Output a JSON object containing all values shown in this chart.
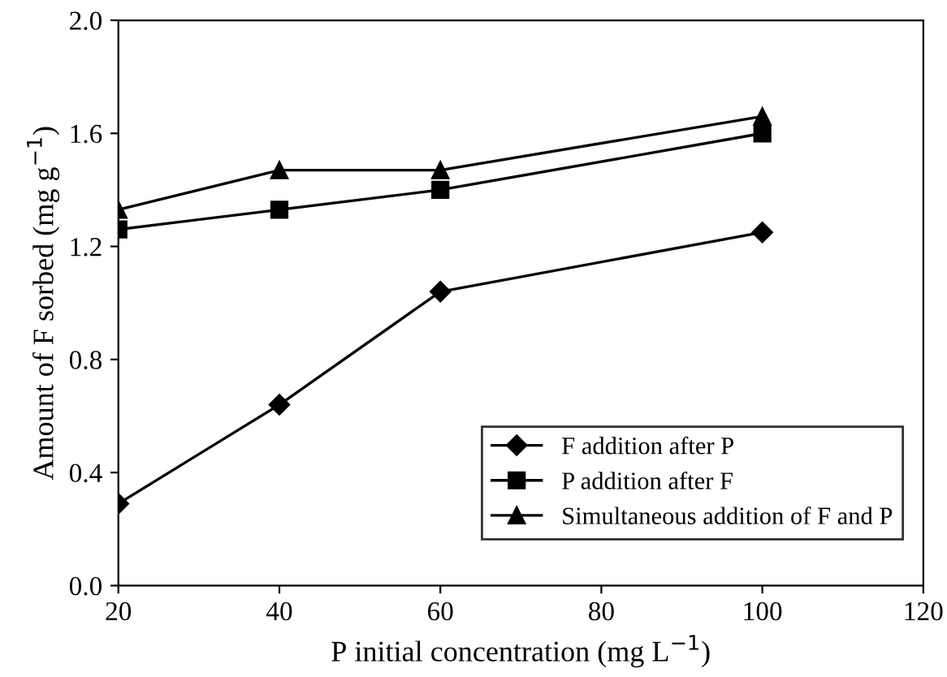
{
  "chart_data": {
    "type": "line",
    "xlabel": "P initial concentration (mg L$^{−1}$)",
    "ylabel": "Amount of F sorbed (mg g$^{−1}$)",
    "x": [
      20,
      40,
      60,
      100
    ],
    "series": [
      {
        "name": "F addition after P",
        "color": "#000000",
        "marker": "diamond",
        "values": [
          0.29,
          0.64,
          1.04,
          1.25
        ]
      },
      {
        "name": "P addition after F",
        "color": "#000000",
        "marker": "square",
        "values": [
          1.26,
          1.33,
          1.4,
          1.6
        ]
      },
      {
        "name": "Simultaneous addition of F and P",
        "color": "#000000",
        "marker": "triangle",
        "values": [
          1.33,
          1.47,
          1.47,
          1.66
        ]
      }
    ],
    "xlim": [
      20,
      120
    ],
    "xticks": [
      20,
      40,
      60,
      80,
      100,
      120
    ],
    "ylim": [
      0,
      2
    ],
    "yticks": [
      {
        "value": 0,
        "label": "0.0"
      },
      {
        "value": 0.4,
        "label": "0.4"
      },
      {
        "value": 0.8,
        "label": "0.8"
      },
      {
        "value": 1.2,
        "label": "1.2"
      },
      {
        "value": 1.6,
        "label": "1.6"
      },
      {
        "value": 2,
        "label": "2.0"
      }
    ],
    "legend": "bottom right",
    "line_style": "solid",
    "grid": false
  }
}
